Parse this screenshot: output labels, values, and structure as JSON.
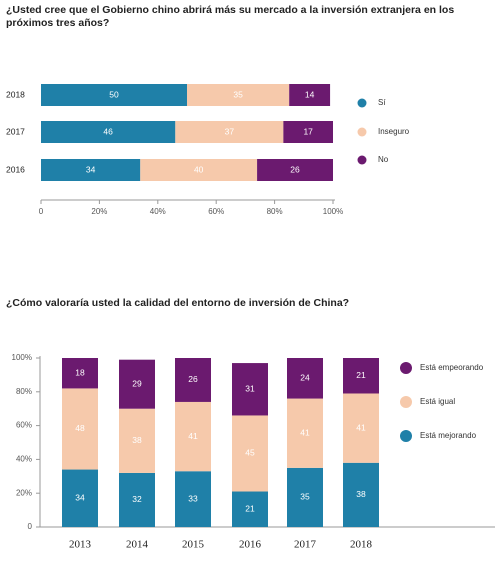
{
  "chart_data": [
    {
      "type": "barh",
      "stacked": true,
      "title": "¿Usted cree que el Gobierno chino abrirá más su mercado a la inversión extranjera en los próximos tres años?",
      "categories": [
        "2018",
        "2017",
        "2016"
      ],
      "series": [
        {
          "name": "Sí",
          "color": "#1f80a8",
          "values": [
            50,
            46,
            34
          ]
        },
        {
          "name": "Inseguro",
          "color": "#f6c9ab",
          "values": [
            35,
            37,
            40
          ]
        },
        {
          "name": "No",
          "color": "#6b1a6f",
          "values": [
            14,
            17,
            26
          ]
        }
      ],
      "xlim": [
        0,
        100
      ],
      "xticks": [
        0,
        {
          "value": 20,
          "label": "20%"
        },
        {
          "value": 40,
          "label": "40%"
        },
        {
          "value": 60,
          "label": "60%"
        },
        {
          "value": 80,
          "label": "80%"
        },
        {
          "value": 100,
          "label": "100%"
        }
      ]
    },
    {
      "type": "bar",
      "stacked": true,
      "title": "¿Cómo valoraría usted la calidad del entorno de inversión de China?",
      "categories": [
        "2013",
        "2014",
        "2015",
        "2016",
        "2017",
        "2018"
      ],
      "series": [
        {
          "name": "Está mejorando",
          "color": "#1f80a8",
          "values": [
            34,
            32,
            33,
            21,
            35,
            38
          ]
        },
        {
          "name": "Está igual",
          "color": "#f6c9ab",
          "values": [
            48,
            38,
            41,
            45,
            41,
            41
          ]
        },
        {
          "name": "Está empeorando",
          "color": "#6b1a6f",
          "values": [
            18,
            29,
            26,
            31,
            24,
            21
          ]
        }
      ],
      "ylim": [
        0,
        100
      ],
      "yticks": [
        0,
        {
          "value": 20,
          "label": "20%"
        },
        {
          "value": 40,
          "label": "40%"
        },
        {
          "value": 60,
          "label": "60%"
        },
        {
          "value": 80,
          "label": "80%"
        },
        {
          "value": 100,
          "label": "100%"
        }
      ]
    }
  ]
}
